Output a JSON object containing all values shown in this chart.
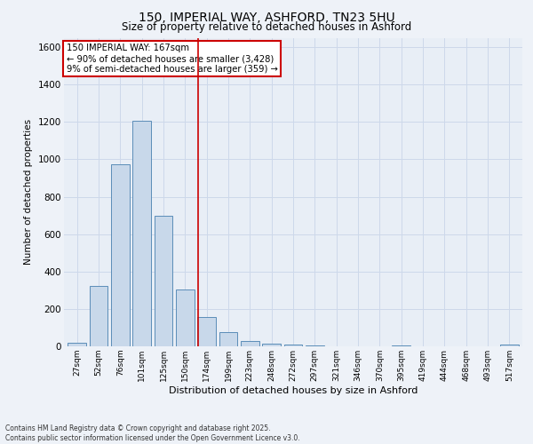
{
  "title": "150, IMPERIAL WAY, ASHFORD, TN23 5HU",
  "subtitle": "Size of property relative to detached houses in Ashford",
  "xlabel": "Distribution of detached houses by size in Ashford",
  "ylabel": "Number of detached properties",
  "bar_color": "#c8d8ea",
  "bar_edge_color": "#5b8db8",
  "bin_labels": [
    "27sqm",
    "52sqm",
    "76sqm",
    "101sqm",
    "125sqm",
    "150sqm",
    "174sqm",
    "199sqm",
    "223sqm",
    "248sqm",
    "272sqm",
    "297sqm",
    "321sqm",
    "346sqm",
    "370sqm",
    "395sqm",
    "419sqm",
    "444sqm",
    "468sqm",
    "493sqm",
    "517sqm"
  ],
  "bar_values": [
    20,
    325,
    975,
    1205,
    700,
    305,
    155,
    75,
    30,
    15,
    10,
    5,
    2,
    2,
    2,
    5,
    1,
    1,
    1,
    1,
    10
  ],
  "vline_x": 5.62,
  "vline_color": "#cc0000",
  "annotation_title": "150 IMPERIAL WAY: 167sqm",
  "annotation_line1": "← 90% of detached houses are smaller (3,428)",
  "annotation_line2": "9% of semi-detached houses are larger (359) →",
  "annotation_box_color": "#ffffff",
  "annotation_box_edge": "#cc0000",
  "ylim": [
    0,
    1650
  ],
  "yticks": [
    0,
    200,
    400,
    600,
    800,
    1000,
    1200,
    1400,
    1600
  ],
  "grid_color": "#cdd8ea",
  "bg_color": "#e8eef6",
  "fig_bg_color": "#eef2f8",
  "footer1": "Contains HM Land Registry data © Crown copyright and database right 2025.",
  "footer2": "Contains public sector information licensed under the Open Government Licence v3.0."
}
